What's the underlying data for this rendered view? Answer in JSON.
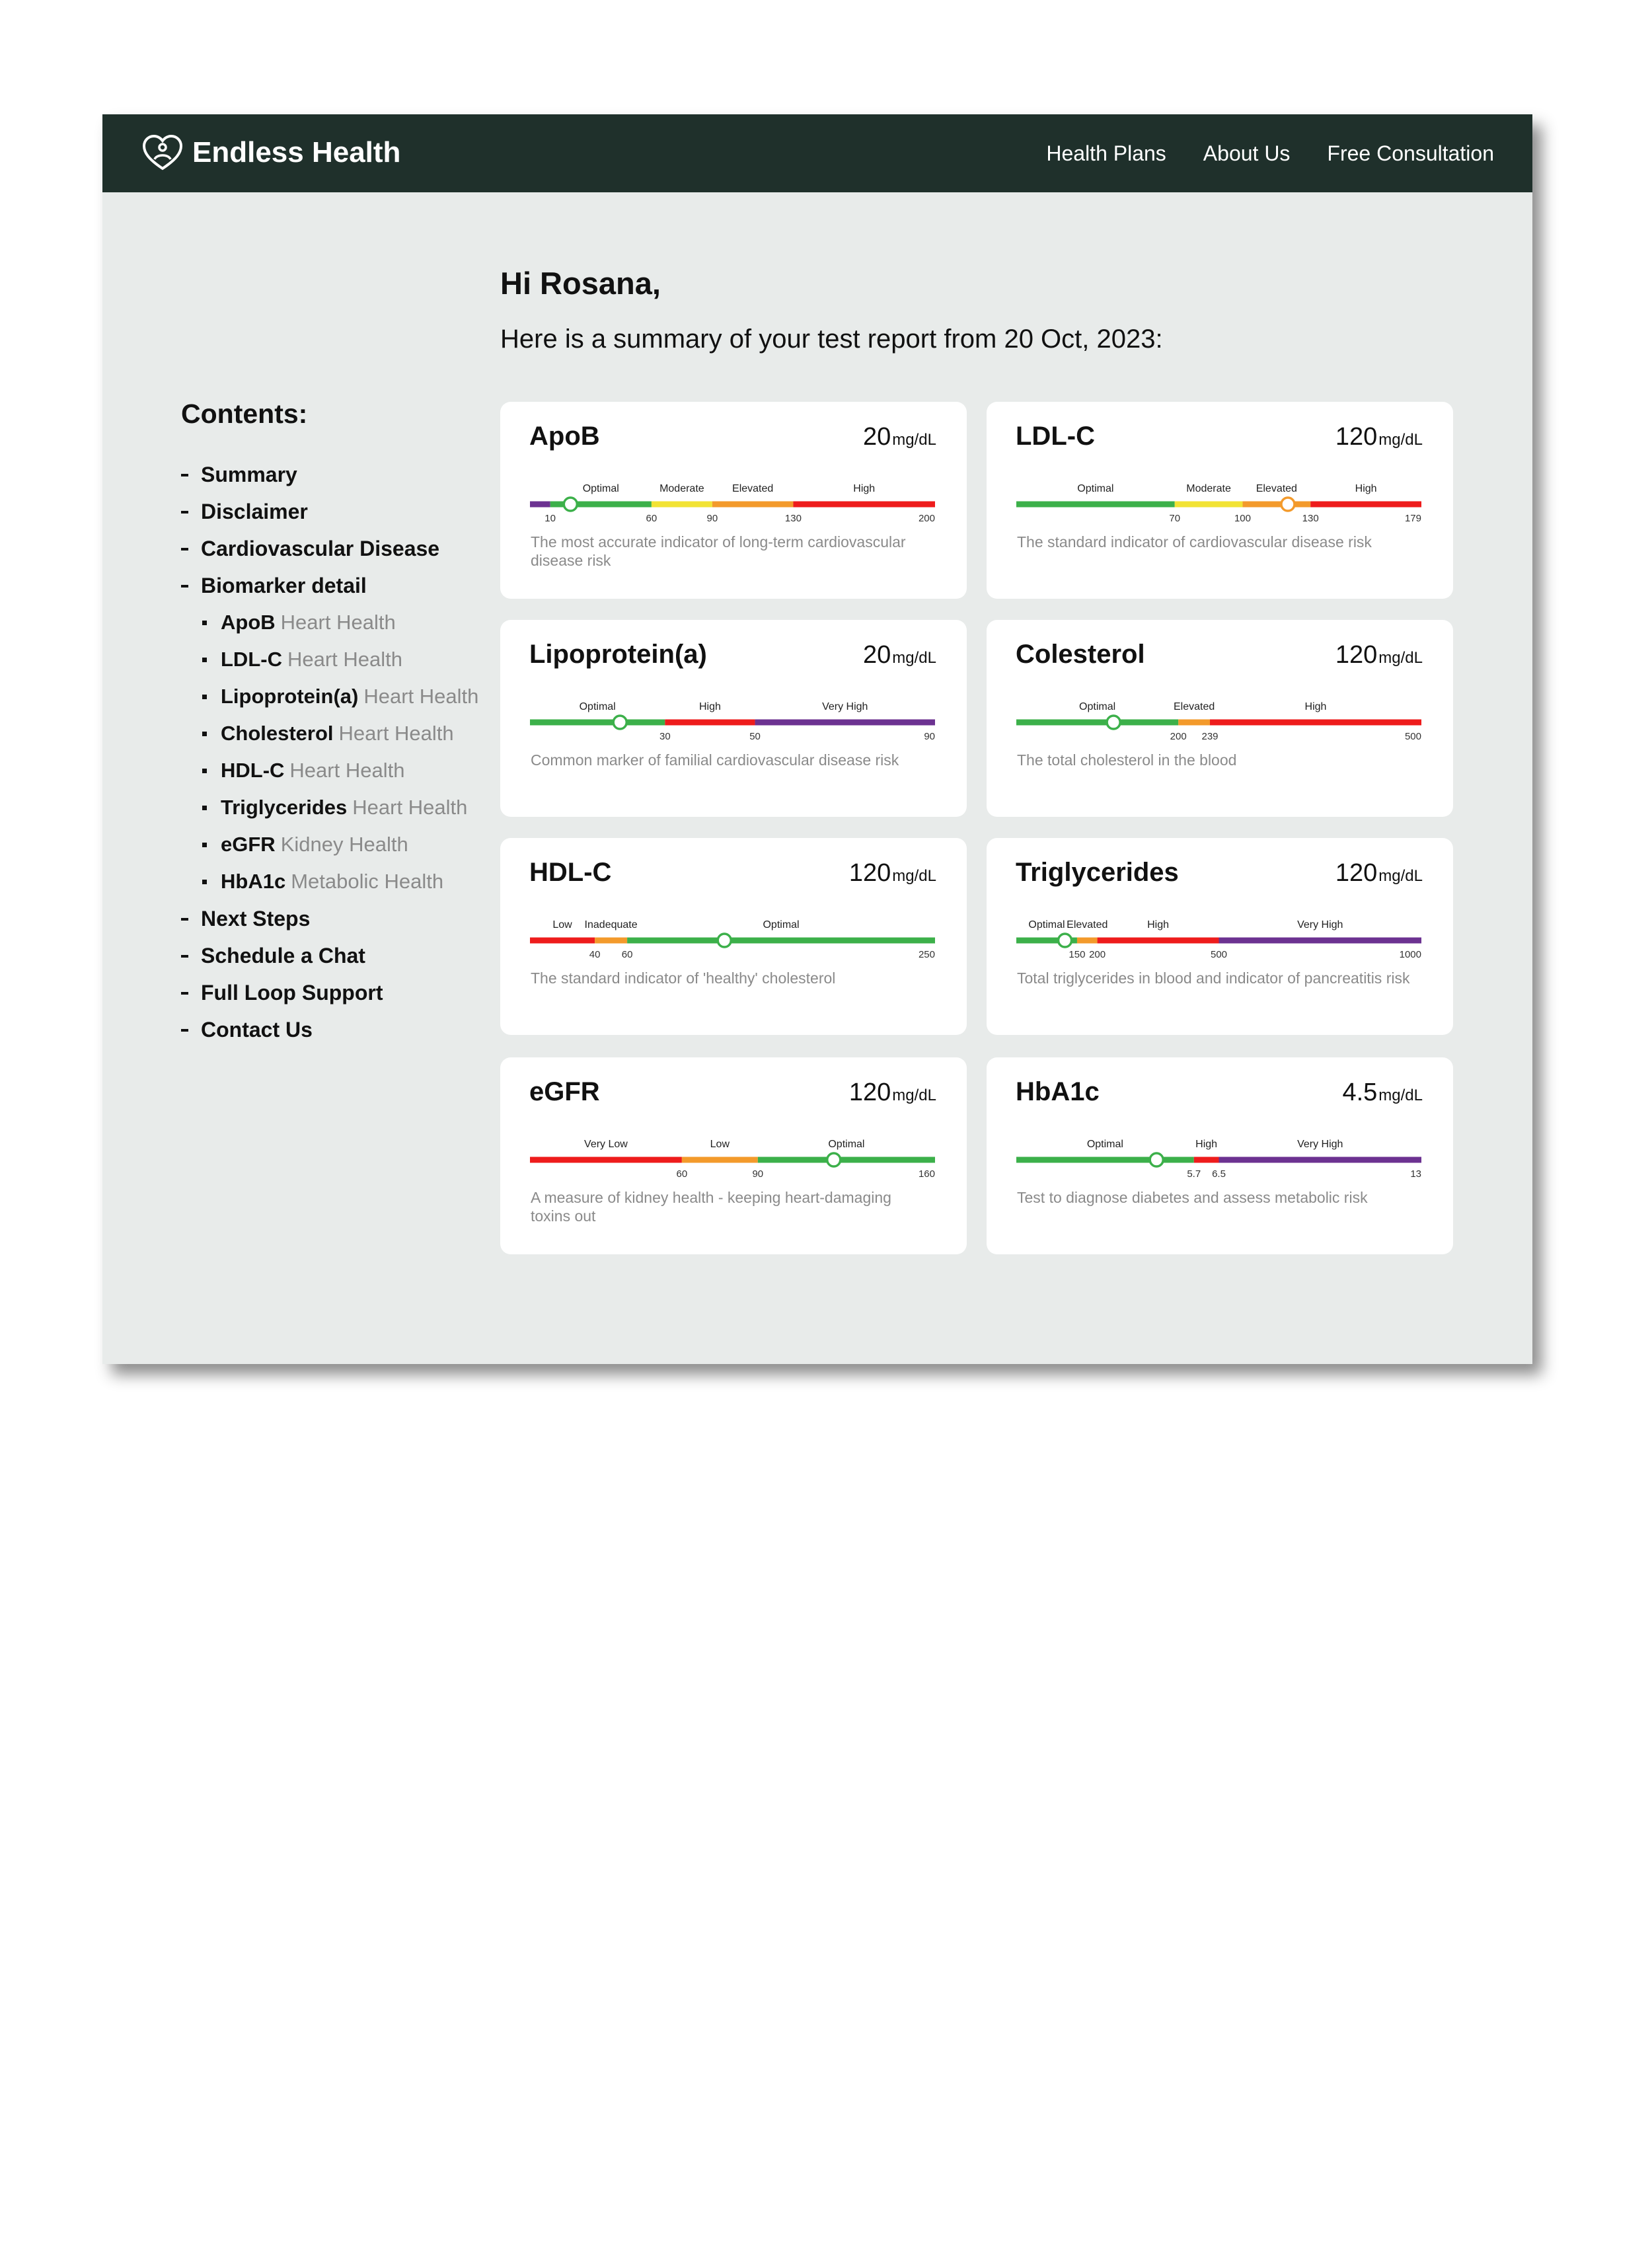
{
  "nav": {
    "brand": "Endless Health",
    "links": [
      "Health Plans",
      "About Us",
      "Free Consultation"
    ]
  },
  "greeting": "Hi Rosana,",
  "summary": "Here is a summary of your test report from 20 Oct, 2023:",
  "contents": {
    "title": "Contents:",
    "items": [
      {
        "label": "Summary"
      },
      {
        "label": "Disclaimer"
      },
      {
        "label": "Cardiovascular Disease"
      },
      {
        "label": "Biomarker detail",
        "children": [
          {
            "name": "ApoB",
            "category": "Heart Health"
          },
          {
            "name": "LDL-C",
            "category": "Heart Health"
          },
          {
            "name": "Lipoprotein(a)",
            "category": "Heart Health"
          },
          {
            "name": "Cholesterol",
            "category": "Heart Health"
          },
          {
            "name": "HDL-C",
            "category": "Heart Health"
          },
          {
            "name": "Triglycerides",
            "category": "Heart Health"
          },
          {
            "name": "eGFR",
            "category": "Kidney Health"
          },
          {
            "name": "HbA1c",
            "category": "Metabolic Health"
          }
        ]
      },
      {
        "label": "Next Steps"
      },
      {
        "label": "Schedule a Chat"
      },
      {
        "label": "Full Loop Support"
      },
      {
        "label": "Contact Us"
      }
    ]
  },
  "biomarkers": [
    {
      "name": "ApoB",
      "value": 20,
      "unit": "mg/dL",
      "description": "The most accurate indicator of long-term cardiovascular disease risk",
      "range": [
        0,
        200
      ],
      "ticks": [
        10,
        60,
        90,
        130,
        200
      ],
      "zones": [
        {
          "color": "#6c3291"
        },
        {
          "label": "Optimal",
          "color": "#3cb04a"
        },
        {
          "label": "Moderate",
          "color": "#f2e334"
        },
        {
          "label": "Elevated",
          "color": "#f39a2b"
        },
        {
          "label": "High",
          "color": "#ee1c1c"
        }
      ]
    },
    {
      "name": "LDL-C",
      "value": 120,
      "unit": "mg/dL",
      "description": "The standard indicator of cardiovascular disease risk",
      "range": [
        0,
        179
      ],
      "ticks": [
        70,
        100,
        130,
        179
      ],
      "zones": [
        {
          "label": "Optimal",
          "color": "#3cb04a"
        },
        {
          "label": "Moderate",
          "color": "#f2e334"
        },
        {
          "label": "Elevated",
          "color": "#f39a2b"
        },
        {
          "label": "High",
          "color": "#ee1c1c"
        }
      ]
    },
    {
      "name": "Lipoprotein(a)",
      "value": 20,
      "unit": "mg/dL",
      "description": "Common marker of familial cardiovascular disease risk",
      "range": [
        0,
        90
      ],
      "ticks": [
        30,
        50,
        90
      ],
      "zones": [
        {
          "label": "Optimal",
          "color": "#3cb04a"
        },
        {
          "label": "High",
          "color": "#ee1c1c"
        },
        {
          "label": "Very High",
          "color": "#6c3291"
        }
      ]
    },
    {
      "name": "Colesterol",
      "value": 120,
      "unit": "mg/dL",
      "description": "The total cholesterol in the blood",
      "range": [
        0,
        500
      ],
      "ticks": [
        200,
        239,
        500
      ],
      "zones": [
        {
          "label": "Optimal",
          "color": "#3cb04a"
        },
        {
          "label": "Elevated",
          "color": "#f39a2b"
        },
        {
          "label": "High",
          "color": "#ee1c1c"
        }
      ]
    },
    {
      "name": "HDL-C",
      "value": 120,
      "unit": "mg/dL",
      "description": "The standard indicator of 'healthy' cholesterol",
      "range": [
        0,
        250
      ],
      "ticks": [
        40,
        60,
        250
      ],
      "zones": [
        {
          "label": "Low",
          "color": "#ee1c1c"
        },
        {
          "label": "Inadequate",
          "color": "#f39a2b"
        },
        {
          "label": "Optimal",
          "color": "#3cb04a"
        }
      ]
    },
    {
      "name": "Triglycerides",
      "value": 120,
      "unit": "mg/dL",
      "description": "Total triglycerides in blood and indicator of pancreatitis risk",
      "range": [
        0,
        1000
      ],
      "ticks": [
        150,
        200,
        500,
        1000
      ],
      "zones": [
        {
          "label": "Optimal",
          "color": "#3cb04a"
        },
        {
          "label": "Elevated",
          "color": "#f39a2b"
        },
        {
          "label": "High",
          "color": "#ee1c1c"
        },
        {
          "label": "Very High",
          "color": "#6c3291"
        }
      ]
    },
    {
      "name": "eGFR",
      "value": 120,
      "unit": "mg/dL",
      "description": "A measure of kidney health - keeping heart-damaging toxins out",
      "range": [
        0,
        160
      ],
      "ticks": [
        60,
        90,
        160
      ],
      "zones": [
        {
          "label": "Very Low",
          "color": "#ee1c1c"
        },
        {
          "label": "Low",
          "color": "#f39a2b"
        },
        {
          "label": "Optimal",
          "color": "#3cb04a"
        }
      ]
    },
    {
      "name": "HbA1c",
      "value": 4.5,
      "unit": "mg/dL",
      "description": "Test to diagnose diabetes and assess metabolic risk",
      "range": [
        0,
        13
      ],
      "ticks": [
        5.7,
        6.5,
        13
      ],
      "zones": [
        {
          "label": "Optimal",
          "color": "#3cb04a"
        },
        {
          "label": "High",
          "color": "#ee1c1c"
        },
        {
          "label": "Very High",
          "color": "#6c3291"
        }
      ]
    }
  ]
}
